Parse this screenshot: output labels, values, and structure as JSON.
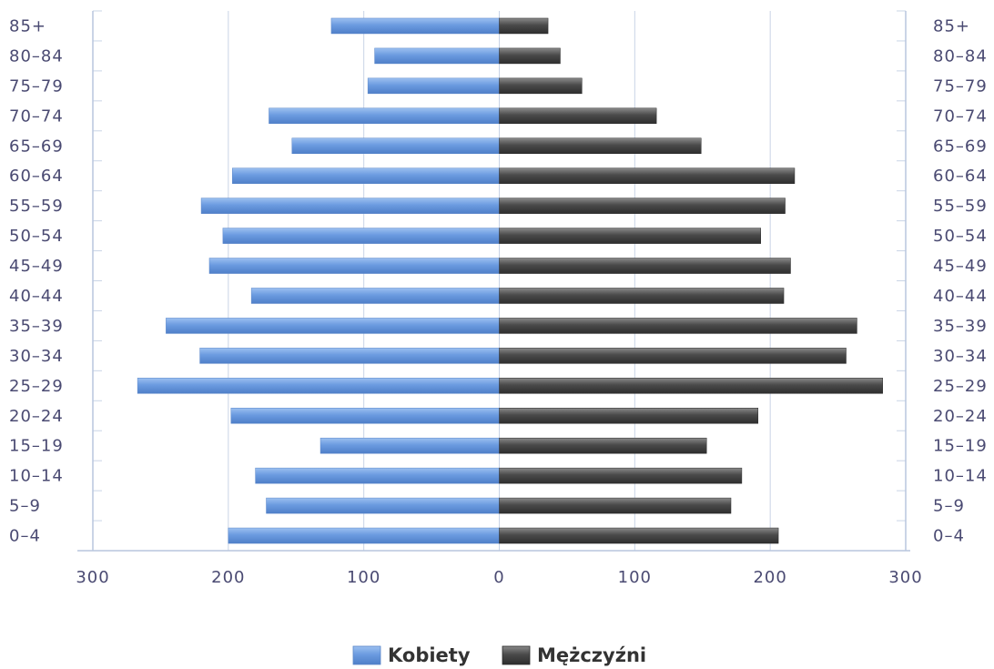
{
  "chart_data": {
    "type": "bar",
    "orientation": "horizontal",
    "layout": "population-pyramid",
    "categories": [
      "0-4",
      "5-9",
      "10-14",
      "15-19",
      "20-24",
      "25-29",
      "30-34",
      "35-39",
      "40-44",
      "45-49",
      "50-54",
      "55-59",
      "60-64",
      "65-69",
      "70-74",
      "75-79",
      "80-84",
      "85+"
    ],
    "series": [
      {
        "name": "Kobiety",
        "side": "left",
        "color": "#6b9be0",
        "values": [
          200,
          172,
          180,
          132,
          198,
          267,
          221,
          246,
          183,
          214,
          204,
          220,
          197,
          153,
          170,
          97,
          92,
          124
        ]
      },
      {
        "name": "Mężczyźni",
        "side": "right",
        "color": "#4a4a4a",
        "values": [
          206,
          171,
          179,
          153,
          191,
          283,
          256,
          264,
          210,
          215,
          193,
          211,
          218,
          149,
          116,
          61,
          45,
          36
        ]
      }
    ],
    "xlim": [
      -300,
      300
    ],
    "x_tick_labels": [
      "300",
      "200",
      "100",
      "0",
      "100",
      "200",
      "300"
    ],
    "grid": true,
    "legend_position": "bottom-center"
  }
}
